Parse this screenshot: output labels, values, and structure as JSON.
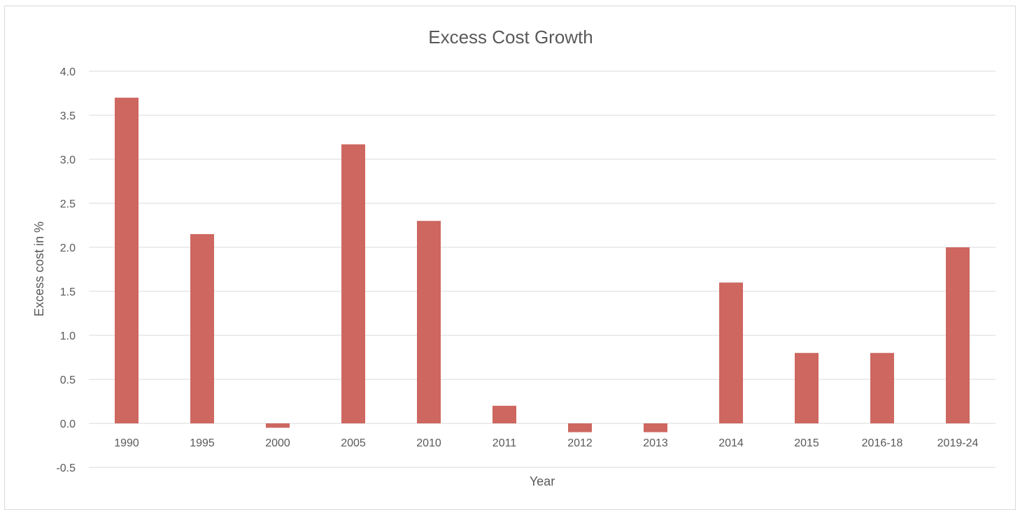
{
  "chart_data": {
    "type": "bar",
    "title": "Excess Cost Growth",
    "xlabel": "Year",
    "ylabel": "Excess cost in %",
    "categories": [
      "1990",
      "1995",
      "2000",
      "2005",
      "2010",
      "2011",
      "2012",
      "2013",
      "2014",
      "2015",
      "2016-18",
      "2019-24"
    ],
    "values": [
      3.7,
      2.15,
      -0.05,
      3.17,
      2.3,
      0.2,
      -0.1,
      -0.1,
      1.6,
      0.8,
      0.8,
      2.0
    ],
    "yticks": [
      "4.0",
      "3.5",
      "3.0",
      "2.5",
      "2.0",
      "1.5",
      "1.0",
      "0.5",
      "0.0",
      "-0.5"
    ],
    "ylim": [
      -0.5,
      4.0
    ],
    "grid": true,
    "legend": "none",
    "bar_color": "#cd6760"
  }
}
